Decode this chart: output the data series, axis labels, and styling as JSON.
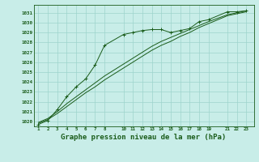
{
  "background_color": "#c8ede8",
  "grid_color": "#9dd4cc",
  "line_color": "#1a5c1a",
  "title": "Graphe pression niveau de la mer (hPa)",
  "title_fontsize": 6.5,
  "title_color": "#1a5c1a",
  "ylim": [
    1019.5,
    1031.8
  ],
  "yticks": [
    1020,
    1021,
    1022,
    1023,
    1024,
    1025,
    1026,
    1027,
    1028,
    1029,
    1030,
    1031
  ],
  "xticks": [
    1,
    2,
    3,
    4,
    5,
    6,
    7,
    8,
    10,
    11,
    12,
    13,
    14,
    15,
    16,
    17,
    18,
    19,
    21,
    22,
    23
  ],
  "xlim": [
    0.5,
    23.8
  ],
  "line_marker_x": [
    1,
    2,
    3,
    4,
    5,
    6,
    7,
    8,
    10,
    11,
    12,
    13,
    14,
    15,
    16,
    17,
    18,
    19,
    21,
    22,
    23
  ],
  "line_marker_y": [
    1019.7,
    1020.1,
    1021.2,
    1022.5,
    1023.5,
    1024.3,
    1025.7,
    1027.7,
    1028.8,
    1029.0,
    1029.2,
    1029.3,
    1029.3,
    1029.0,
    1029.2,
    1029.4,
    1030.1,
    1030.3,
    1031.1,
    1031.1,
    1031.2
  ],
  "line2_x": [
    1,
    2,
    3,
    4,
    5,
    6,
    7,
    8,
    10,
    11,
    12,
    13,
    14,
    15,
    16,
    17,
    18,
    19,
    21,
    22,
    23
  ],
  "line2_y": [
    1019.9,
    1020.3,
    1021.0,
    1021.8,
    1022.5,
    1023.2,
    1023.9,
    1024.6,
    1025.8,
    1026.4,
    1027.0,
    1027.6,
    1028.1,
    1028.5,
    1028.9,
    1029.3,
    1029.7,
    1030.1,
    1030.8,
    1031.0,
    1031.2
  ],
  "line3_x": [
    1,
    2,
    3,
    4,
    5,
    6,
    7,
    8,
    10,
    11,
    12,
    13,
    14,
    15,
    16,
    17,
    18,
    19,
    21,
    22,
    23
  ],
  "line3_y": [
    1019.8,
    1020.2,
    1020.8,
    1021.5,
    1022.2,
    1022.9,
    1023.5,
    1024.2,
    1025.4,
    1026.0,
    1026.6,
    1027.2,
    1027.7,
    1028.1,
    1028.6,
    1029.0,
    1029.5,
    1029.9,
    1030.7,
    1030.9,
    1031.1
  ]
}
